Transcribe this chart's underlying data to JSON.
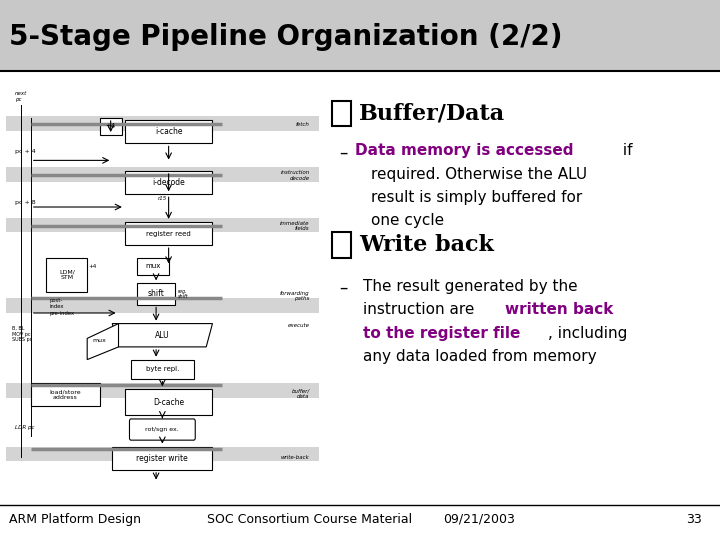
{
  "title": "5-Stage Pipeline Organization (2/2)",
  "title_fontsize": 20,
  "title_color": "#000000",
  "title_bg": "#c8c8c8",
  "bg_color": "#ffffff",
  "header_line_color": "#000000",
  "bullet1_header": "Buffer/Data",
  "bullet2_header": "Write back",
  "footer_left": "ARM Platform Design",
  "footer_center": "SOC Consortium Course Material",
  "footer_date": "09/21/2003",
  "footer_page": "33",
  "purple_color": "#800080",
  "black_color": "#000000",
  "footer_fontsize": 9,
  "diagram_bg": "#e8e8e8",
  "box_color": "#ffffff",
  "box_edge": "#000000",
  "gray_box": "#b0b0b0",
  "dark_gray": "#606060"
}
